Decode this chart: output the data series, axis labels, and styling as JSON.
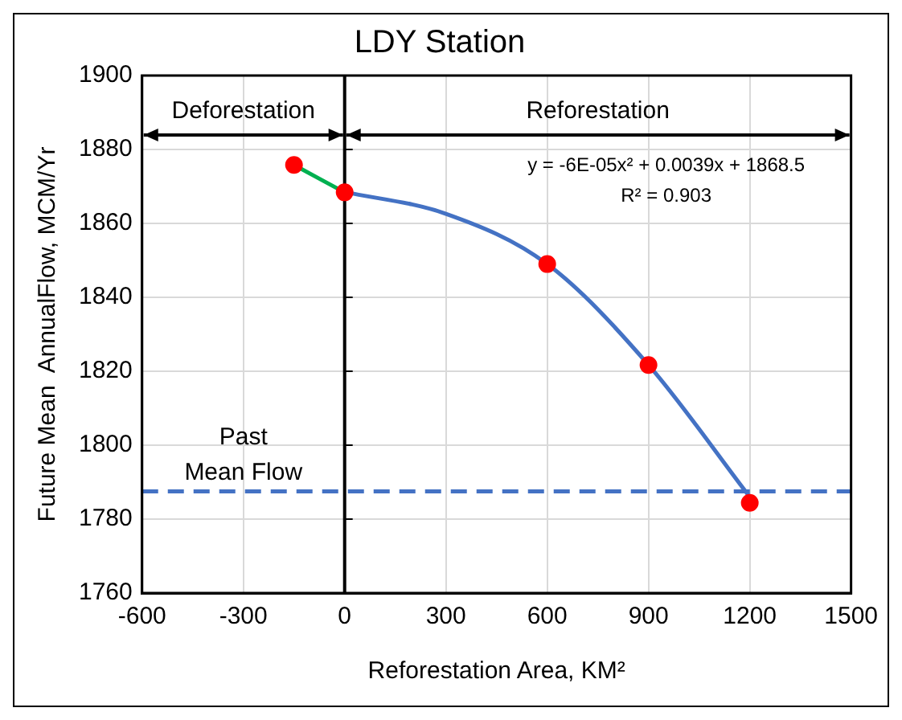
{
  "chart_data": {
    "type": "scatter",
    "title": "LDY Station",
    "xlabel": "Reforestation Area, KM²",
    "ylabel": "Future Mean  AnnualFlow, MCM/Yr",
    "xlim": [
      -600,
      1500
    ],
    "xticks": [
      -600,
      -300,
      0,
      300,
      600,
      900,
      1200,
      1500
    ],
    "ylim": [
      1760,
      1900
    ],
    "yticks": [
      1760,
      1780,
      1800,
      1820,
      1840,
      1860,
      1880,
      1900
    ],
    "grid": true,
    "legend": false,
    "series": [
      {
        "type": "line",
        "color": "#00b050",
        "marker": "none",
        "x": [
          -150,
          0
        ],
        "values": [
          1875.8,
          1868.4
        ]
      },
      {
        "type": "line",
        "color": "#4472c4",
        "marker": "none",
        "x": [
          0,
          300,
          600,
          900,
          1200
        ],
        "values": [
          1868.5,
          1862.6,
          1849,
          1821.7,
          1786
        ]
      },
      {
        "type": "scatter",
        "color": "#ff0000",
        "marker": "circle",
        "x": [
          -150,
          0,
          600,
          900,
          1200
        ],
        "values": [
          1875.8,
          1868.4,
          1849,
          1821.7,
          1784.4
        ]
      }
    ],
    "ref_lines": [
      {
        "axis": "x",
        "value": 0,
        "color": "#000000",
        "line_style": "solid"
      },
      {
        "axis": "y",
        "value": 1787.5,
        "label": "Past Mean Flow",
        "color": "#4472c4",
        "line_style": "dashed"
      }
    ],
    "annotations": [
      "Deforestation",
      "Reforestation",
      "y = -6E-05x² + 0.0039x + 1868.5",
      "R² = 0.903"
    ]
  }
}
